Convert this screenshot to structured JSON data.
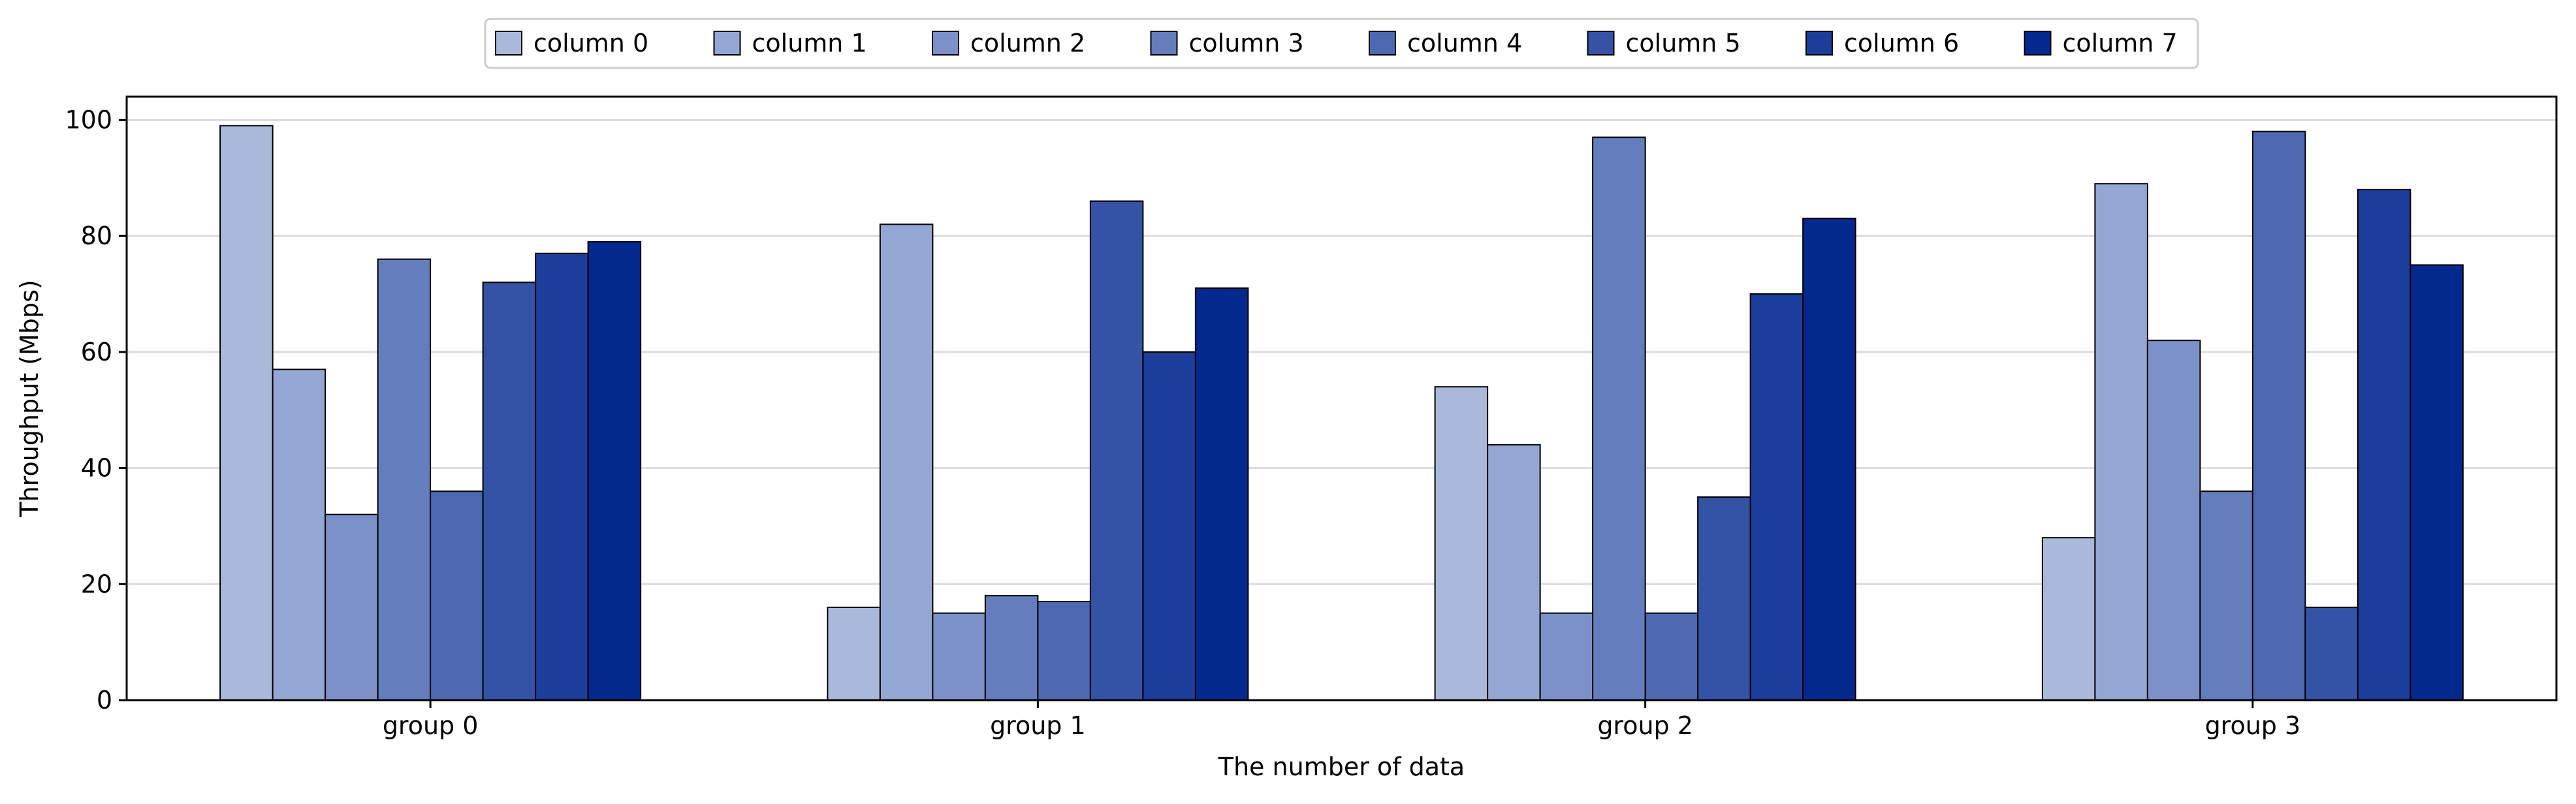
{
  "chart_data": {
    "type": "bar",
    "title": "",
    "xlabel": "The number of data",
    "ylabel": "Throughput (Mbps)",
    "ylim": [
      0,
      104
    ],
    "yticks": [
      0,
      20,
      40,
      60,
      80,
      100
    ],
    "grid": "y",
    "legend": "top-center",
    "categories": [
      "group 0",
      "group 1",
      "group 2",
      "group 3"
    ],
    "series": [
      {
        "name": "column 0",
        "color": "#aab9da",
        "values": [
          99,
          16,
          54,
          28
        ]
      },
      {
        "name": "column 1",
        "color": "#94a7d3",
        "values": [
          57,
          82,
          44,
          89
        ]
      },
      {
        "name": "column 2",
        "color": "#7b91c7",
        "values": [
          32,
          15,
          15,
          62
        ]
      },
      {
        "name": "column 3",
        "color": "#637dbd",
        "values": [
          76,
          18,
          97,
          36
        ]
      },
      {
        "name": "column 4",
        "color": "#4b68b1",
        "values": [
          36,
          17,
          15,
          98
        ]
      },
      {
        "name": "column 5",
        "color": "#3453a5",
        "values": [
          72,
          86,
          35,
          16
        ]
      },
      {
        "name": "column 6",
        "color": "#1c3d99",
        "values": [
          77,
          60,
          70,
          88
        ]
      },
      {
        "name": "column 7",
        "color": "#03288e",
        "values": [
          79,
          71,
          83,
          75
        ]
      }
    ]
  }
}
